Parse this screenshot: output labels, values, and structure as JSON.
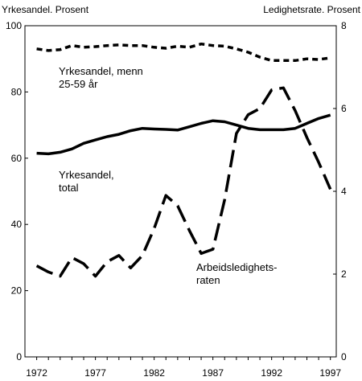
{
  "chart_data": {
    "type": "line",
    "left_axis": {
      "title": "Yrkesandel. Prosent",
      "range": [
        0,
        100
      ],
      "ticks": [
        0,
        20,
        40,
        60,
        80,
        100
      ]
    },
    "right_axis": {
      "title": "Ledighetsrate. Prosent",
      "range": [
        0,
        8
      ],
      "ticks": [
        0,
        2,
        4,
        6,
        8
      ]
    },
    "x_axis": {
      "range": [
        1971,
        1997.5
      ],
      "ticks": [
        1972,
        1977,
        1982,
        1987,
        1992,
        1997
      ]
    },
    "grid": false,
    "legend": "none",
    "series": [
      {
        "name": "Yrkesandel, menn 25-59 år",
        "axis": "left",
        "style": "short-dash",
        "x": [
          1972,
          1973,
          1974,
          1975,
          1976,
          1977,
          1978,
          1979,
          1980,
          1981,
          1982,
          1983,
          1984,
          1985,
          1986,
          1987,
          1988,
          1989,
          1990,
          1991,
          1992,
          1993,
          1994,
          1995,
          1996,
          1997
        ],
        "values": [
          93,
          92.5,
          92.8,
          94,
          93.5,
          93.7,
          94,
          94.2,
          94,
          94,
          93.5,
          93.2,
          93.8,
          93.5,
          94.5,
          94,
          93.8,
          93,
          92,
          90.5,
          89.5,
          89.5,
          89.5,
          90,
          89.8,
          90.3
        ]
      },
      {
        "name": "Yrkesandel, total",
        "axis": "left",
        "style": "solid",
        "x": [
          1972,
          1973,
          1974,
          1975,
          1976,
          1977,
          1978,
          1979,
          1980,
          1981,
          1982,
          1983,
          1984,
          1985,
          1986,
          1987,
          1988,
          1989,
          1990,
          1991,
          1992,
          1993,
          1994,
          1995,
          1996,
          1997
        ],
        "values": [
          61.5,
          61.3,
          61.8,
          62.8,
          64.5,
          65.5,
          66.5,
          67.2,
          68.3,
          69,
          68.8,
          68.7,
          68.5,
          69.5,
          70.5,
          71.3,
          71,
          70,
          69,
          68.6,
          68.6,
          68.6,
          69,
          70.5,
          72,
          73
        ]
      },
      {
        "name": "Arbeidsledighetsraten",
        "axis": "right",
        "style": "long-dash",
        "x": [
          1972,
          1973,
          1974,
          1975,
          1976,
          1977,
          1978,
          1979,
          1980,
          1981,
          1982,
          1983,
          1984,
          1985,
          1986,
          1987,
          1988,
          1989,
          1990,
          1991,
          1992,
          1993,
          1994,
          1995,
          1996,
          1997
        ],
        "values": [
          2.2,
          2.05,
          1.95,
          2.4,
          2.25,
          1.95,
          2.3,
          2.45,
          2.15,
          2.45,
          3.1,
          3.9,
          3.65,
          3.05,
          2.5,
          2.6,
          3.8,
          5.4,
          5.85,
          6.0,
          6.45,
          6.5,
          5.95,
          5.3,
          4.7,
          4.05
        ]
      }
    ],
    "annotations": [
      {
        "lines": [
          "Yrkesandel, menn",
          "25-59 år"
        ]
      },
      {
        "lines": [
          "Yrkesandel,",
          "total"
        ]
      },
      {
        "lines": [
          "Arbeidsledighets-",
          "raten"
        ]
      }
    ]
  }
}
